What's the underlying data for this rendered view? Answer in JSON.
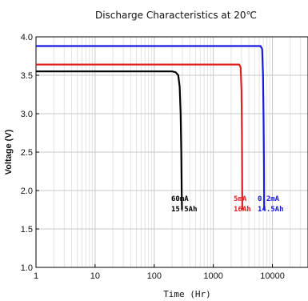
{
  "chart_data": {
    "type": "line",
    "title": "Discharge Characteristics at 20℃",
    "xlabel": "Time (Hr)",
    "ylabel": "Voltage (V)",
    "x_scale": "log",
    "xlim": [
      1,
      40000
    ],
    "ylim": [
      1.0,
      4.0
    ],
    "x_ticks": [
      1,
      10,
      100,
      1000,
      10000
    ],
    "x_tick_labels": [
      "1",
      "10",
      "100",
      "1000",
      "10000"
    ],
    "y_ticks": [
      1.0,
      1.5,
      2.0,
      2.5,
      3.0,
      3.5,
      4.0
    ],
    "y_tick_labels": [
      "1.0",
      "1.5",
      "2.0",
      "2.5",
      "3.0",
      "3.5",
      "4.0"
    ],
    "grid": true,
    "series": [
      {
        "color": "#000000",
        "points": [
          [
            1,
            3.55
          ],
          [
            200,
            3.55
          ],
          [
            230,
            3.54
          ],
          [
            255,
            3.5
          ],
          [
            270,
            3.35
          ],
          [
            280,
            3.0
          ],
          [
            287,
            2.5
          ],
          [
            292,
            2.0
          ],
          [
            295,
            1.75
          ]
        ],
        "annotation": [
          "60mA",
          "15.5Ah"
        ]
      },
      {
        "color": "#e02020",
        "points": [
          [
            1,
            3.64
          ],
          [
            2750,
            3.64
          ],
          [
            2900,
            3.6
          ],
          [
            3000,
            3.3
          ],
          [
            3050,
            2.8
          ],
          [
            3080,
            2.2
          ],
          [
            3100,
            1.75
          ]
        ],
        "annotation": [
          "5mA",
          "16Ah"
        ]
      },
      {
        "color": "#1a1adf",
        "points": [
          [
            1,
            3.88
          ],
          [
            6300,
            3.88
          ],
          [
            6700,
            3.84
          ],
          [
            6950,
            3.5
          ],
          [
            7100,
            2.9
          ],
          [
            7200,
            2.3
          ],
          [
            7250,
            1.75
          ]
        ],
        "annotation": [
          "0.2mA",
          "14.5Ah"
        ]
      }
    ]
  }
}
